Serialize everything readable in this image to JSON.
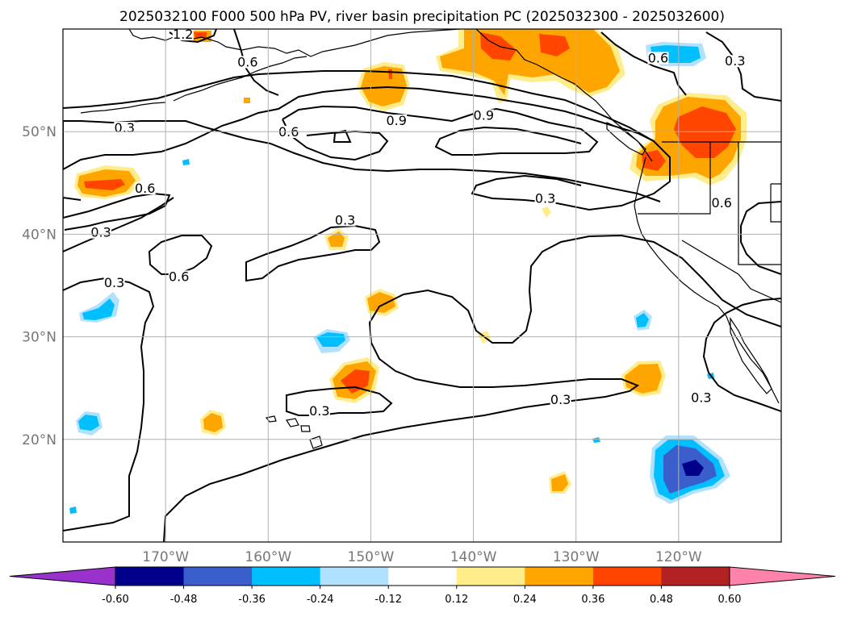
{
  "title": "2025032100 F000 500 hPa PV, river basin precipitation PC (2025032300 - 2025032600)",
  "map": {
    "lon_range": [
      -180,
      -110
    ],
    "lat_range": [
      10,
      60
    ],
    "lon_ticks": [
      {
        "lon": -170,
        "label": "170°W"
      },
      {
        "lon": -160,
        "label": "160°W"
      },
      {
        "lon": -150,
        "label": "150°W"
      },
      {
        "lon": -140,
        "label": "140°W"
      },
      {
        "lon": -130,
        "label": "130°W"
      },
      {
        "lon": -120,
        "label": "120°W"
      }
    ],
    "lat_ticks": [
      {
        "lat": 20,
        "label": "20°N"
      },
      {
        "lat": 30,
        "label": "30°N"
      },
      {
        "lat": 40,
        "label": "40°N"
      },
      {
        "lat": 50,
        "label": "50°N"
      }
    ],
    "contour_labels": [
      {
        "text": "0.3",
        "lon": -174,
        "lat": 50.1
      },
      {
        "text": "0.6",
        "lon": -158,
        "lat": 49.7
      },
      {
        "text": "0.9",
        "lon": -147.5,
        "lat": 50.8
      },
      {
        "text": "0.9",
        "lon": -139,
        "lat": 51.3
      },
      {
        "text": "0.6",
        "lon": -162,
        "lat": 56.5
      },
      {
        "text": "0.6",
        "lon": -172,
        "lat": 44.2
      },
      {
        "text": "0.3",
        "lon": -133,
        "lat": 43.2
      },
      {
        "text": "0.3",
        "lon": -152.5,
        "lat": 41.1
      },
      {
        "text": "0.3",
        "lon": -176.3,
        "lat": 39.9
      },
      {
        "text": "0.6",
        "lon": -168.7,
        "lat": 35.6
      },
      {
        "text": "0.3",
        "lon": -175,
        "lat": 35
      },
      {
        "text": "0.3",
        "lon": -131.5,
        "lat": 23.6
      },
      {
        "text": "0.3",
        "lon": -155,
        "lat": 22.5
      },
      {
        "text": "0.3",
        "lon": -117.8,
        "lat": 23.8
      },
      {
        "text": "0.6",
        "lon": -115.8,
        "lat": 42.8
      },
      {
        "text": "0.3",
        "lon": -114.5,
        "lat": 56.6
      },
      {
        "text": "0.6",
        "lon": -122,
        "lat": 56.9
      },
      {
        "text": "1.2",
        "lon": -168.3,
        "lat": 59.2
      }
    ]
  },
  "colorbar": {
    "colors": [
      "#9932CC",
      "#00008B",
      "#3A5FCD",
      "#00BFFF",
      "#B0E2FF",
      "#FFFFFF",
      "#FFEC8B",
      "#FFA500",
      "#FF4500",
      "#B22222",
      "#FF82AB"
    ],
    "ticks": [
      "-0.60",
      "-0.48",
      "-0.36",
      "-0.24",
      "-0.12",
      "0.12",
      "0.24",
      "0.36",
      "0.48",
      "0.60"
    ]
  },
  "shading_palette": {
    "pos1": "#FFEC8B",
    "pos2": "#FFA500",
    "pos3": "#FF4500",
    "neg1": "#B0E2FF",
    "neg2": "#00BFFF",
    "neg3": "#3A5FCD",
    "neg4": "#00008B"
  }
}
